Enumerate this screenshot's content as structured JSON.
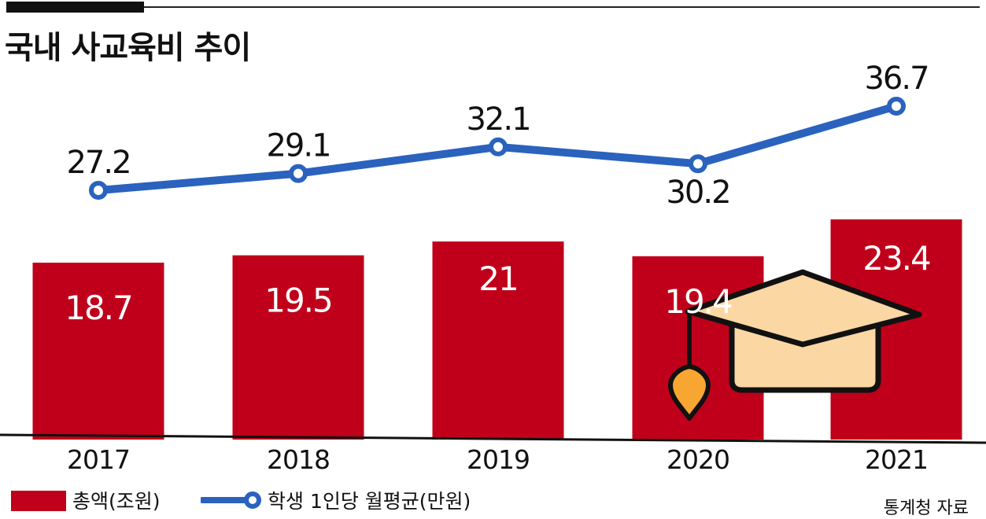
{
  "chart_data": {
    "type": "bar",
    "title": "국내 사교육비 추이",
    "categories": [
      "2017",
      "2018",
      "2019",
      "2020",
      "2021"
    ],
    "series": [
      {
        "name": "총액(조원)",
        "chart_type": "bar",
        "values": [
          18.7,
          19.5,
          21,
          19.4,
          23.4
        ],
        "color": "#c0001a"
      },
      {
        "name": "학생 1인당 월평균(만원)",
        "chart_type": "line",
        "values": [
          27.2,
          29.1,
          32.1,
          30.2,
          36.7
        ],
        "color": "#2a62be"
      }
    ],
    "bar_labels": [
      "18.7",
      "19.5",
      "21",
      "19.4",
      "23.4"
    ],
    "line_labels": [
      "27.2",
      "29.1",
      "32.1",
      "30.2",
      "36.7"
    ],
    "grid": false,
    "legend_position": "bottom-left"
  },
  "source": "통계청 자료",
  "decoration": "graduation-cap-icon"
}
